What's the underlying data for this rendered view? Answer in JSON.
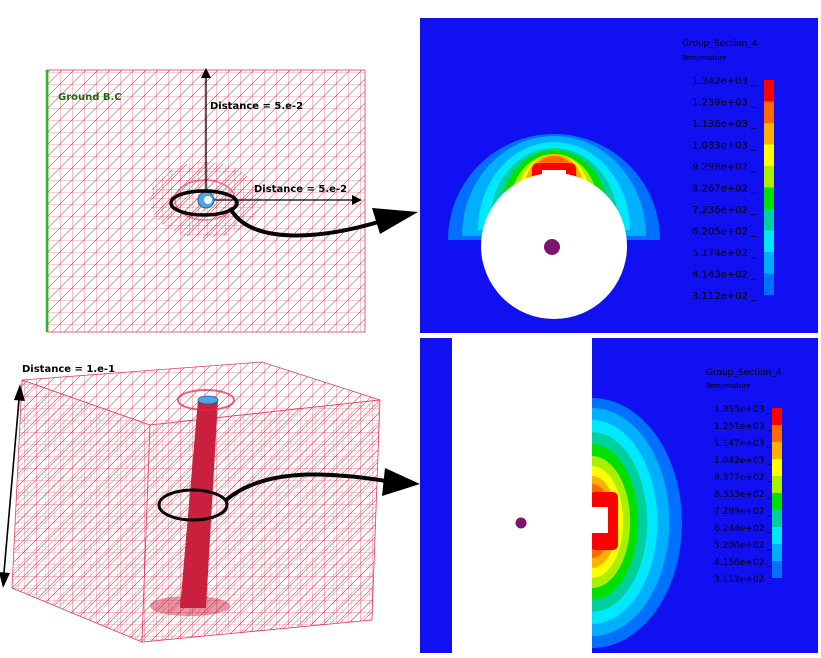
{
  "top_mesh": {
    "ground_label": "Ground B.C",
    "distance_vertical": "Distance = 5.e-2",
    "distance_horizontal": "Distance = 5.e-2"
  },
  "cube_mesh": {
    "distance_label": "Distance = 1.e-1"
  },
  "legend_top": {
    "title": "Group_Section_4",
    "subtitle": "Temperature",
    "ticks": [
      "1.342e+03",
      "1.239e+03",
      "1.136e+03",
      "1.033e+03",
      "9.298e+02",
      "8.267e+02",
      "7.236e+02",
      "6.205e+02",
      "5.174e+02",
      "4.143e+02",
      "3.112e+02"
    ],
    "colors": [
      "#ff0000",
      "#ff6a00",
      "#ffb000",
      "#ffff00",
      "#a8f000",
      "#00e000",
      "#00d0a0",
      "#00e8ff",
      "#00b0ff",
      "#0070ff"
    ]
  },
  "legend_bottom": {
    "title": "Group_Section_4",
    "subtitle": "Temperature",
    "ticks": [
      "1.355e+03",
      "1.251e+03",
      "1.147e+03",
      "1.042e+03",
      "9.377e+02",
      "8.333e+02",
      "7.289e+02",
      "6.244e+02",
      "5.200e+02",
      "4.156e+02",
      "3.112e+02"
    ],
    "colors": [
      "#ff0000",
      "#ff6a00",
      "#ffb000",
      "#ffff00",
      "#a8f000",
      "#00e000",
      "#00d0a0",
      "#00e8ff",
      "#00b0ff",
      "#0070ff"
    ]
  },
  "colors": {
    "background_blue": "#1010f0",
    "mesh_red": "#e0405a",
    "ground_green": "#22bb22"
  }
}
